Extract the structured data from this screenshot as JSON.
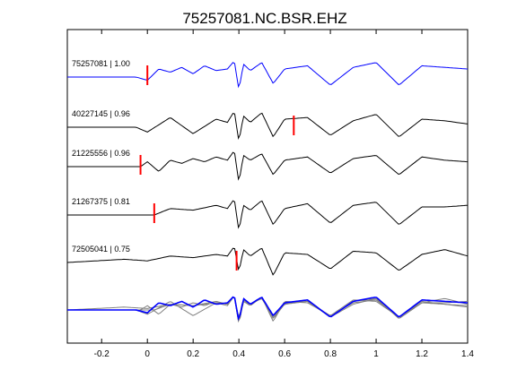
{
  "chart_data": {
    "type": "line",
    "title": "75257081.NC.BSR.EHZ",
    "xlim": [
      -0.35,
      1.4
    ],
    "x_ticks": [
      -0.2,
      0,
      0.2,
      0.4,
      0.6,
      0.8,
      1,
      1.2,
      1.4
    ],
    "x_tick_labels": [
      "-0.2",
      "0",
      "0.2",
      "0.4",
      "0.6",
      "0.8",
      "1",
      "1.2",
      "1.4"
    ],
    "grid": false,
    "colors": {
      "reference": "#0000ff",
      "trace": "#000000",
      "pick": "#ff0000",
      "stack": "#808080"
    },
    "series": [
      {
        "name": "75257081 | 1.00",
        "color": "#0000ff",
        "pick": 0.0,
        "t": [
          -0.35,
          -0.05,
          0.0,
          0.05,
          0.1,
          0.15,
          0.2,
          0.25,
          0.3,
          0.35,
          0.38,
          0.4,
          0.42,
          0.45,
          0.5,
          0.55,
          0.6,
          0.7,
          0.8,
          0.9,
          1.0,
          1.1,
          1.2,
          1.3,
          1.4
        ],
        "y": [
          0,
          0,
          -0.2,
          0.5,
          0.3,
          0.6,
          0.2,
          0.7,
          0.4,
          0.5,
          1.0,
          -0.8,
          0.8,
          0.4,
          0.9,
          -0.4,
          0.5,
          0.7,
          -0.5,
          0.6,
          0.9,
          -0.5,
          0.7,
          0.6,
          0.5
        ]
      },
      {
        "name": "40227145 | 0.96",
        "color": "#000000",
        "pick": 0.64,
        "t": [
          -0.35,
          -0.05,
          0.0,
          0.1,
          0.2,
          0.3,
          0.35,
          0.38,
          0.4,
          0.42,
          0.45,
          0.5,
          0.55,
          0.6,
          0.7,
          0.8,
          0.9,
          1.0,
          1.1,
          1.2,
          1.3,
          1.4
        ],
        "y": [
          0,
          0,
          -0.3,
          0.6,
          -0.4,
          0.5,
          0.3,
          1.0,
          -0.9,
          0.7,
          0.3,
          0.9,
          -0.6,
          0.5,
          0.6,
          -0.5,
          0.4,
          0.8,
          -0.6,
          0.5,
          0.4,
          0.2
        ]
      },
      {
        "name": "21225556 | 0.96",
        "color": "#000000",
        "pick": -0.03,
        "t": [
          -0.35,
          -0.03,
          0.0,
          0.05,
          0.1,
          0.15,
          0.2,
          0.25,
          0.3,
          0.35,
          0.38,
          0.4,
          0.42,
          0.45,
          0.5,
          0.55,
          0.6,
          0.7,
          0.8,
          0.9,
          1.0,
          1.1,
          1.2,
          1.3,
          1.4
        ],
        "y": [
          0,
          0,
          0.3,
          -0.3,
          0.4,
          0.2,
          0.5,
          0.3,
          0.6,
          0.4,
          1.0,
          -1.0,
          0.7,
          0.4,
          0.8,
          -0.5,
          0.4,
          0.6,
          -0.4,
          0.5,
          0.7,
          -0.5,
          0.6,
          0.4,
          0.3
        ]
      },
      {
        "name": "21267375 | 0.81",
        "color": "#000000",
        "pick": 0.03,
        "t": [
          -0.35,
          0.03,
          0.1,
          0.2,
          0.3,
          0.35,
          0.38,
          0.4,
          0.42,
          0.45,
          0.5,
          0.55,
          0.6,
          0.7,
          0.8,
          0.9,
          1.0,
          1.1,
          1.2,
          1.3,
          1.4
        ],
        "y": [
          0,
          0,
          0.4,
          0.3,
          0.6,
          0.4,
          1.0,
          -1.0,
          0.6,
          0.3,
          0.9,
          -0.6,
          0.4,
          0.7,
          -0.5,
          0.6,
          0.8,
          -0.6,
          0.5,
          0.5,
          0.6
        ]
      },
      {
        "name": "72505041 | 0.75",
        "color": "#000000",
        "pick": 0.39,
        "t": [
          -0.35,
          -0.1,
          0.0,
          0.1,
          0.2,
          0.3,
          0.35,
          0.38,
          0.4,
          0.42,
          0.45,
          0.5,
          0.55,
          0.6,
          0.7,
          0.8,
          0.9,
          1.0,
          1.1,
          1.2,
          1.3,
          1.4
        ],
        "y": [
          0,
          0.2,
          0.1,
          0.4,
          0.3,
          0.5,
          0.4,
          1.0,
          -0.6,
          0.8,
          0.4,
          0.9,
          -0.8,
          0.6,
          0.5,
          -0.4,
          0.7,
          0.6,
          -0.5,
          0.5,
          0.8,
          0.4
        ]
      }
    ],
    "stack": {
      "color_traces": "#808080",
      "color_reference": "#0000ff"
    }
  }
}
